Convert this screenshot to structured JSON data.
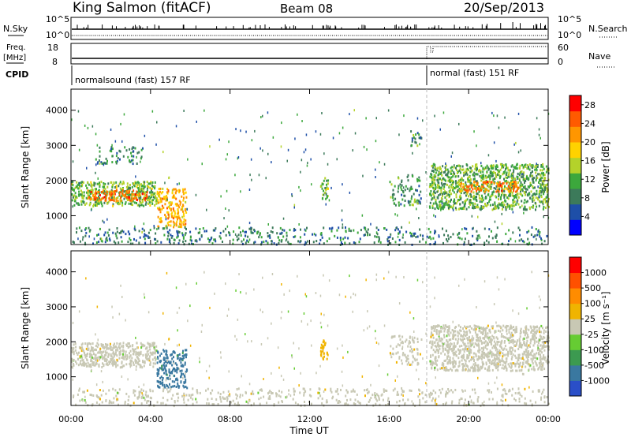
{
  "header": {
    "station": "King Salmon (fitACF)",
    "beam": "Beam 08",
    "date": "20/Sep/2013"
  },
  "summary_panels": {
    "nsky_label": "N.Sky",
    "nsearch_label": "N.Search",
    "freq_label_top": "Freq.",
    "freq_label_unit": "[MHz]",
    "nave_label": "Nave",
    "cpid_label": "CPID",
    "noise_ticks_left": [
      "10^5",
      "10^0"
    ],
    "noise_ticks_right": [
      "10^5",
      "10^0"
    ],
    "freq_ticks": [
      "18",
      "8"
    ],
    "nave_ticks": [
      "60",
      "0"
    ],
    "cpid_segments": [
      {
        "label": "normalsound (fast) 157 RF",
        "start_hour": 0,
        "end_hour": 18
      },
      {
        "label": "normal (fast) 151 RF",
        "start_hour": 18,
        "end_hour": 24
      }
    ]
  },
  "chart_data": [
    {
      "type": "heatmap",
      "title": "",
      "xlabel": "",
      "ylabel": "Slant Range [km]",
      "xlim": [
        0,
        24
      ],
      "ylim": [
        180,
        4600
      ],
      "yticks": [
        1000,
        2000,
        3000,
        4000
      ],
      "colorbar": {
        "label": "Power [dB]",
        "ticks": [
          "4",
          "8",
          "12",
          "16",
          "20",
          "24",
          "28"
        ],
        "range": [
          0,
          30
        ],
        "colors": [
          "#0000ff",
          "#1e4fa8",
          "#3c7a5a",
          "#3ca83c",
          "#b4d22a",
          "#ffd200",
          "#ff9600",
          "#ff5a00",
          "#ff0000"
        ]
      },
      "regions": [
        {
          "t0": 0.0,
          "t1": 4.3,
          "r0": 1300,
          "r1": 2000,
          "power": 13,
          "density": 0.9
        },
        {
          "t0": 0.8,
          "t1": 3.8,
          "r0": 1450,
          "r1": 1750,
          "power": 24,
          "density": 0.8
        },
        {
          "t0": 4.3,
          "t1": 5.8,
          "r0": 700,
          "r1": 1800,
          "power": 20,
          "density": 0.7
        },
        {
          "t0": 1.2,
          "t1": 3.6,
          "r0": 2500,
          "r1": 3000,
          "power": 9,
          "density": 0.3
        },
        {
          "t0": 12.5,
          "t1": 12.9,
          "r0": 1500,
          "r1": 2100,
          "power": 13,
          "density": 0.8
        },
        {
          "t0": 16.0,
          "t1": 17.6,
          "r0": 1300,
          "r1": 2200,
          "power": 10,
          "density": 0.35
        },
        {
          "t0": 18.0,
          "t1": 24.0,
          "r0": 1200,
          "r1": 2500,
          "power": 12,
          "density": 0.85
        },
        {
          "t0": 19.5,
          "t1": 22.5,
          "r0": 1700,
          "r1": 2000,
          "power": 23,
          "density": 0.7
        },
        {
          "t0": 17.0,
          "t1": 17.6,
          "r0": 3000,
          "r1": 3500,
          "power": 10,
          "density": 0.4
        },
        {
          "t0": 0.0,
          "t1": 24.0,
          "r0": 200,
          "r1": 700,
          "power": 8,
          "density": 0.25
        }
      ]
    },
    {
      "type": "heatmap",
      "title": "",
      "xlabel": "Time UT",
      "ylabel": "Slant Range [km]",
      "xlim": [
        0,
        24
      ],
      "ylim": [
        180,
        4600
      ],
      "yticks": [
        1000,
        2000,
        3000,
        4000
      ],
      "xticks": [
        "00:00",
        "04:00",
        "08:00",
        "12:00",
        "16:00",
        "20:00",
        "00:00"
      ],
      "colorbar": {
        "label": "Velocity [m s⁻¹]",
        "ticks": [
          "1000",
          "500",
          "100",
          "25",
          "-25",
          "-100",
          "-500",
          "-1000"
        ],
        "range": [
          -1000,
          1000
        ],
        "colors": [
          "#2a4fc8",
          "#3a78a0",
          "#3c9a50",
          "#66cc33",
          "#c8c8b4",
          "#f0b400",
          "#ff8c00",
          "#ff5000",
          "#ff0000"
        ]
      },
      "regions": [
        {
          "t0": 0.0,
          "t1": 4.3,
          "r0": 1300,
          "r1": 2000,
          "velocity": 0,
          "density": 0.9
        },
        {
          "t0": 4.3,
          "t1": 5.8,
          "r0": 700,
          "r1": 1800,
          "velocity": -600,
          "density": 0.7
        },
        {
          "t0": 12.5,
          "t1": 12.9,
          "r0": 1500,
          "r1": 2100,
          "velocity": 300,
          "density": 0.8
        },
        {
          "t0": 16.0,
          "t1": 17.6,
          "r0": 1300,
          "r1": 2200,
          "velocity": 80,
          "density": 0.35
        },
        {
          "t0": 18.0,
          "t1": 24.0,
          "r0": 1200,
          "r1": 2500,
          "velocity": 0,
          "density": 0.85
        },
        {
          "t0": 0.0,
          "t1": 24.0,
          "r0": 200,
          "r1": 700,
          "velocity": 30,
          "density": 0.25
        }
      ]
    }
  ]
}
